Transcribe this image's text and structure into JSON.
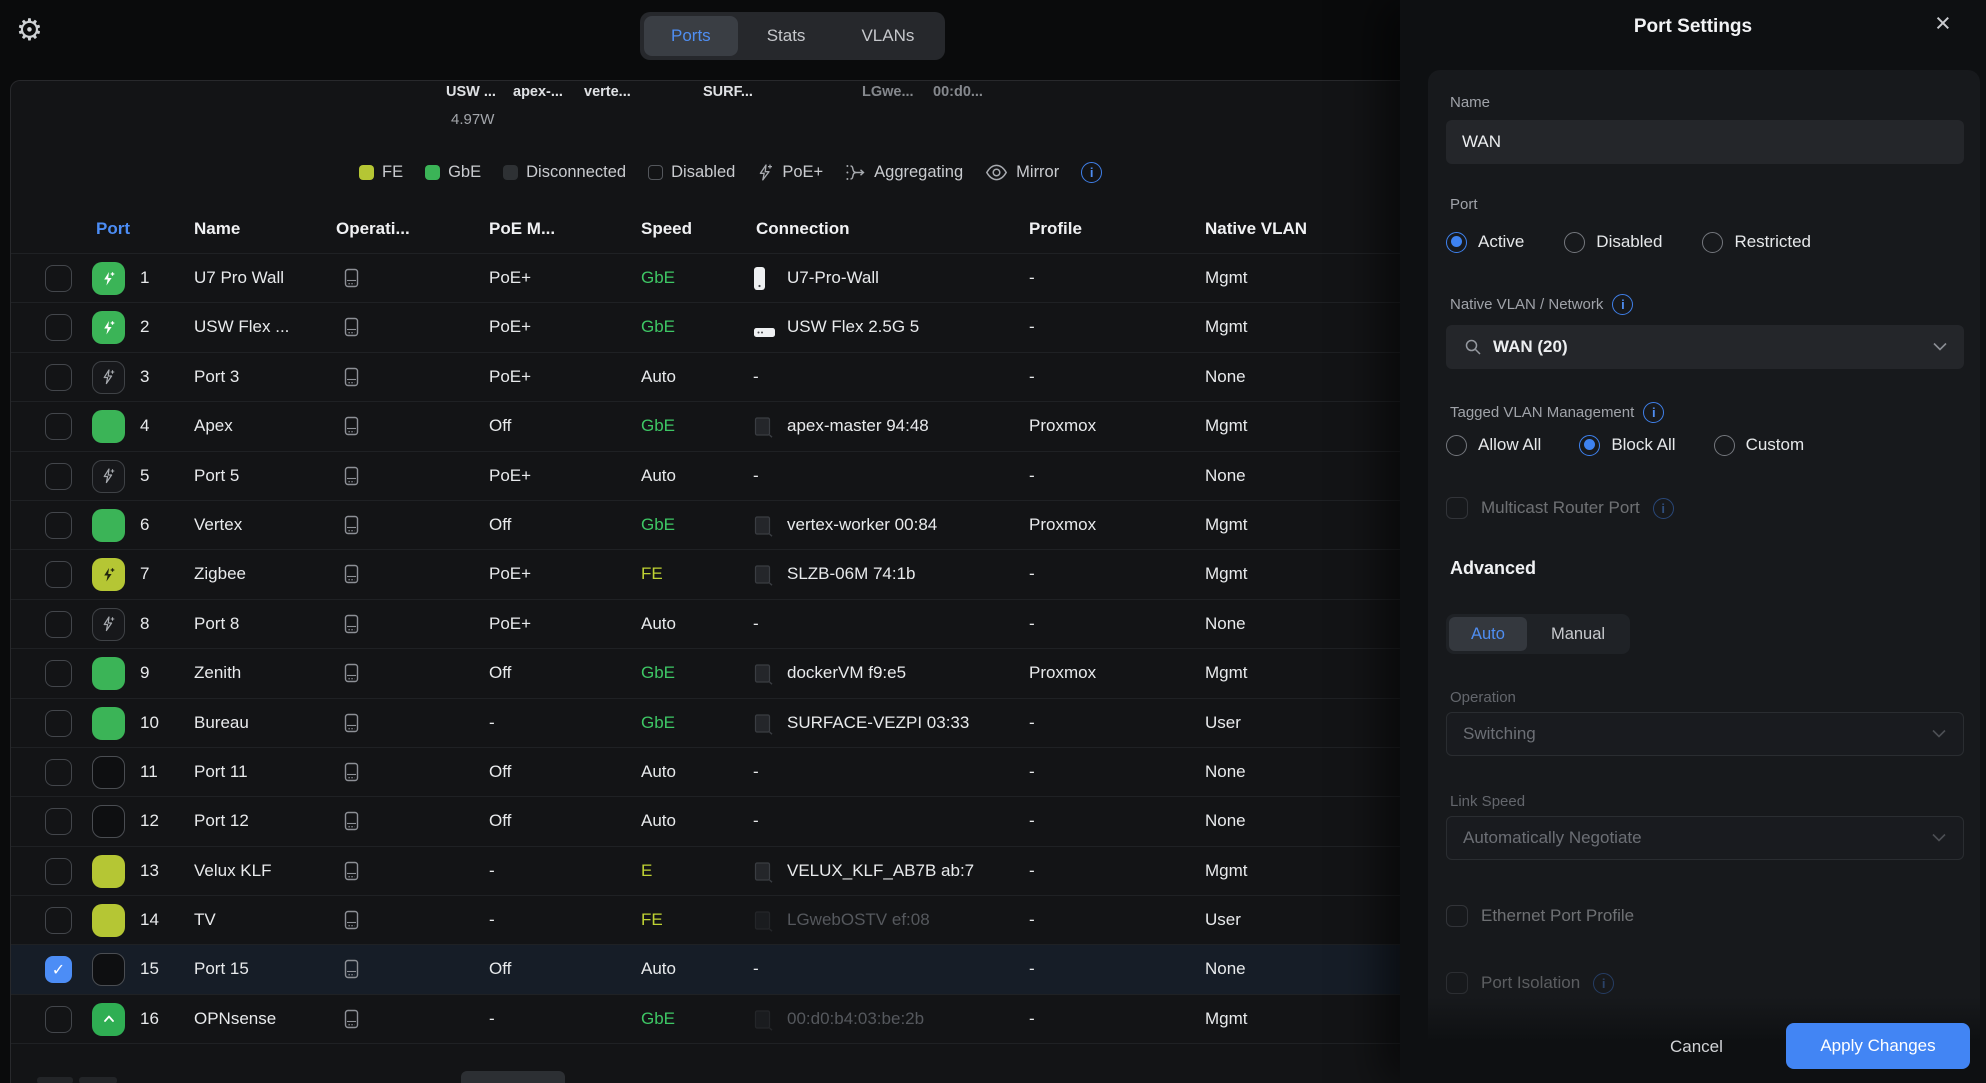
{
  "topbar": {
    "tabs": [
      {
        "label": "Ports",
        "active": true
      },
      {
        "label": "Stats",
        "active": false
      },
      {
        "label": "VLANs",
        "active": false
      }
    ]
  },
  "overview": {
    "device_labels": [
      {
        "text": "USW ...",
        "dim": false
      },
      {
        "text": "apex-...",
        "dim": false
      },
      {
        "text": "verte...",
        "dim": false
      },
      {
        "text": "SURF...",
        "dim": false
      },
      {
        "text": "LGwe...",
        "dim": true
      },
      {
        "text": "00:d0...",
        "dim": true
      }
    ],
    "power": "4.97W"
  },
  "legend": {
    "items": [
      {
        "icon": "square-fe",
        "label": "FE"
      },
      {
        "icon": "square-gbe",
        "label": "GbE"
      },
      {
        "icon": "square-disconnected",
        "label": "Disconnected"
      },
      {
        "icon": "square-disabled",
        "label": "Disabled"
      },
      {
        "icon": "poe-bolt",
        "label": "PoE+"
      },
      {
        "icon": "aggregating",
        "label": "Aggregating"
      },
      {
        "icon": "mirror-eye",
        "label": "Mirror"
      }
    ],
    "colors": {
      "fe": "#b5c634",
      "gbe": "#3bb457",
      "disconnected": "#2e3134",
      "accent": "#4285f4"
    }
  },
  "table": {
    "headers": [
      "Port",
      "Name",
      "Operati...",
      "PoE M...",
      "Speed",
      "Connection",
      "Profile",
      "Native VLAN"
    ],
    "rows": [
      {
        "num": "1",
        "icon": "poe-green",
        "name": "U7 Pro Wall",
        "poe": "PoE+",
        "speed": "GbE",
        "speed_color": "green",
        "conn_icon": "ap",
        "conn": "U7-Pro-Wall",
        "conn_dim": false,
        "profile": "-",
        "vlan": "Mgmt",
        "selected": false
      },
      {
        "num": "2",
        "icon": "poe-green",
        "name": "USW Flex ...",
        "poe": "PoE+",
        "speed": "GbE",
        "speed_color": "green",
        "conn_icon": "switch",
        "conn": "USW Flex 2.5G 5",
        "conn_dim": false,
        "profile": "-",
        "vlan": "Mgmt",
        "selected": false
      },
      {
        "num": "3",
        "icon": "poe-dark",
        "name": "Port 3",
        "poe": "PoE+",
        "speed": "Auto",
        "speed_color": "white",
        "conn_icon": "none",
        "conn": "-",
        "conn_dim": false,
        "profile": "-",
        "vlan": "None",
        "selected": false
      },
      {
        "num": "4",
        "icon": "green",
        "name": "Apex",
        "poe": "Off",
        "speed": "GbE",
        "speed_color": "green",
        "conn_icon": "server",
        "conn": "apex-master 94:48",
        "conn_dim": false,
        "profile": "Proxmox",
        "vlan": "Mgmt",
        "selected": false
      },
      {
        "num": "5",
        "icon": "poe-dark",
        "name": "Port 5",
        "poe": "PoE+",
        "speed": "Auto",
        "speed_color": "white",
        "conn_icon": "none",
        "conn": "-",
        "conn_dim": false,
        "profile": "-",
        "vlan": "None",
        "selected": false
      },
      {
        "num": "6",
        "icon": "green",
        "name": "Vertex",
        "poe": "Off",
        "speed": "GbE",
        "speed_color": "green",
        "conn_icon": "server",
        "conn": "vertex-worker 00:84",
        "conn_dim": false,
        "profile": "Proxmox",
        "vlan": "Mgmt",
        "selected": false
      },
      {
        "num": "7",
        "icon": "poe-fe",
        "name": "Zigbee",
        "poe": "PoE+",
        "speed": "FE",
        "speed_color": "yellow",
        "conn_icon": "server",
        "conn": "SLZB-06M 74:1b",
        "conn_dim": false,
        "profile": "-",
        "vlan": "Mgmt",
        "selected": false
      },
      {
        "num": "8",
        "icon": "poe-dark",
        "name": "Port 8",
        "poe": "PoE+",
        "speed": "Auto",
        "speed_color": "white",
        "conn_icon": "none",
        "conn": "-",
        "conn_dim": false,
        "profile": "-",
        "vlan": "None",
        "selected": false
      },
      {
        "num": "9",
        "icon": "green",
        "name": "Zenith",
        "poe": "Off",
        "speed": "GbE",
        "speed_color": "green",
        "conn_icon": "server",
        "conn": "dockerVM f9:e5",
        "conn_dim": false,
        "profile": "Proxmox",
        "vlan": "Mgmt",
        "selected": false
      },
      {
        "num": "10",
        "icon": "green",
        "name": "Bureau",
        "poe": "-",
        "speed": "GbE",
        "speed_color": "green",
        "conn_icon": "server",
        "conn": "SURFACE-VEZPI 03:33",
        "conn_dim": false,
        "profile": "-",
        "vlan": "User",
        "selected": false
      },
      {
        "num": "11",
        "icon": "dark",
        "name": "Port 11",
        "poe": "Off",
        "speed": "Auto",
        "speed_color": "white",
        "conn_icon": "none",
        "conn": "-",
        "conn_dim": false,
        "profile": "-",
        "vlan": "None",
        "selected": false
      },
      {
        "num": "12",
        "icon": "dark",
        "name": "Port 12",
        "poe": "Off",
        "speed": "Auto",
        "speed_color": "white",
        "conn_icon": "none",
        "conn": "-",
        "conn_dim": false,
        "profile": "-",
        "vlan": "None",
        "selected": false
      },
      {
        "num": "13",
        "icon": "fe",
        "name": "Velux KLF",
        "poe": "-",
        "speed": "E",
        "speed_color": "yellow",
        "conn_icon": "server",
        "conn": "VELUX_KLF_AB7B ab:7",
        "conn_dim": false,
        "profile": "-",
        "vlan": "Mgmt",
        "selected": false
      },
      {
        "num": "14",
        "icon": "fe",
        "name": "TV",
        "poe": "-",
        "speed": "FE",
        "speed_color": "yellow",
        "conn_icon": "server",
        "conn": "LGwebOSTV ef:08",
        "conn_dim": true,
        "profile": "-",
        "vlan": "User",
        "selected": false
      },
      {
        "num": "15",
        "icon": "dark",
        "name": "Port 15",
        "poe": "Off",
        "speed": "Auto",
        "speed_color": "white",
        "conn_icon": "none",
        "conn": "-",
        "conn_dim": false,
        "profile": "-",
        "vlan": "None",
        "selected": true
      },
      {
        "num": "16",
        "icon": "uplink",
        "name": "OPNsense",
        "poe": "-",
        "speed": "GbE",
        "speed_color": "green",
        "conn_icon": "server",
        "conn": "00:d0:b4:03:be:2b",
        "conn_dim": true,
        "profile": "-",
        "vlan": "Mgmt",
        "selected": false
      }
    ]
  },
  "panel": {
    "title": "Port Settings",
    "name_label": "Name",
    "name_value": "WAN",
    "port_label": "Port",
    "port_options": [
      {
        "label": "Active",
        "selected": true
      },
      {
        "label": "Disabled",
        "selected": false
      },
      {
        "label": "Restricted",
        "selected": false
      }
    ],
    "native_vlan_label": "Native VLAN / Network",
    "native_vlan_value": "WAN (20)",
    "tagged_label": "Tagged VLAN Management",
    "tagged_options": [
      {
        "label": "Allow All",
        "selected": false
      },
      {
        "label": "Block All",
        "selected": true
      },
      {
        "label": "Custom",
        "selected": false
      }
    ],
    "multicast_label": "Multicast Router Port",
    "advanced_label": "Advanced",
    "mode_tabs": [
      {
        "label": "Auto",
        "active": true
      },
      {
        "label": "Manual",
        "active": false
      }
    ],
    "operation_label": "Operation",
    "operation_value": "Switching",
    "link_speed_label": "Link Speed",
    "link_speed_value": "Automatically Negotiate",
    "ethernet_profile_label": "Ethernet Port Profile",
    "port_isolation_label": "Port Isolation",
    "cancel_label": "Cancel",
    "apply_label": "Apply Changes"
  }
}
